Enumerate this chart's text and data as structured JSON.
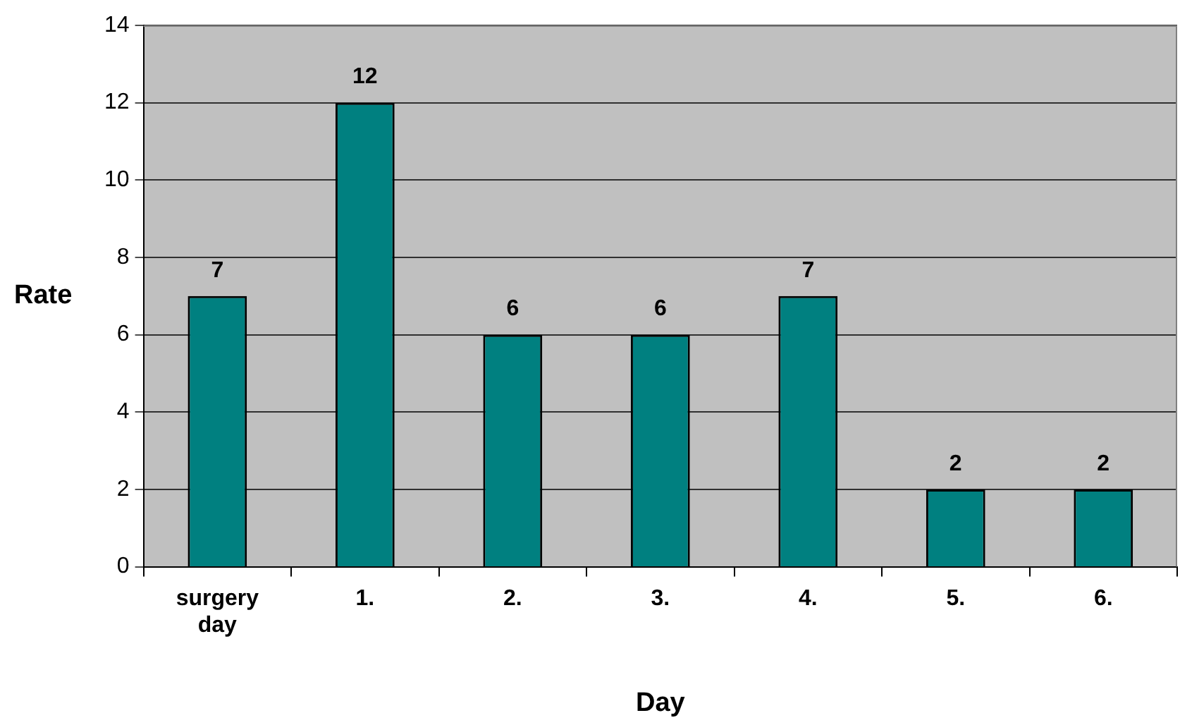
{
  "chart_data": {
    "type": "bar",
    "xlabel": "Day",
    "ylabel": "Rate",
    "categories": [
      "surgery day",
      "1.",
      "2.",
      "3.",
      "4.",
      "5.",
      "6."
    ],
    "values": [
      7,
      12,
      6,
      6,
      7,
      2,
      2
    ],
    "color": "#008080",
    "ylim": [
      0,
      14
    ],
    "yticks": [
      0,
      2,
      4,
      6,
      8,
      10,
      12,
      14
    ],
    "grid": "y",
    "data_labels": true
  }
}
